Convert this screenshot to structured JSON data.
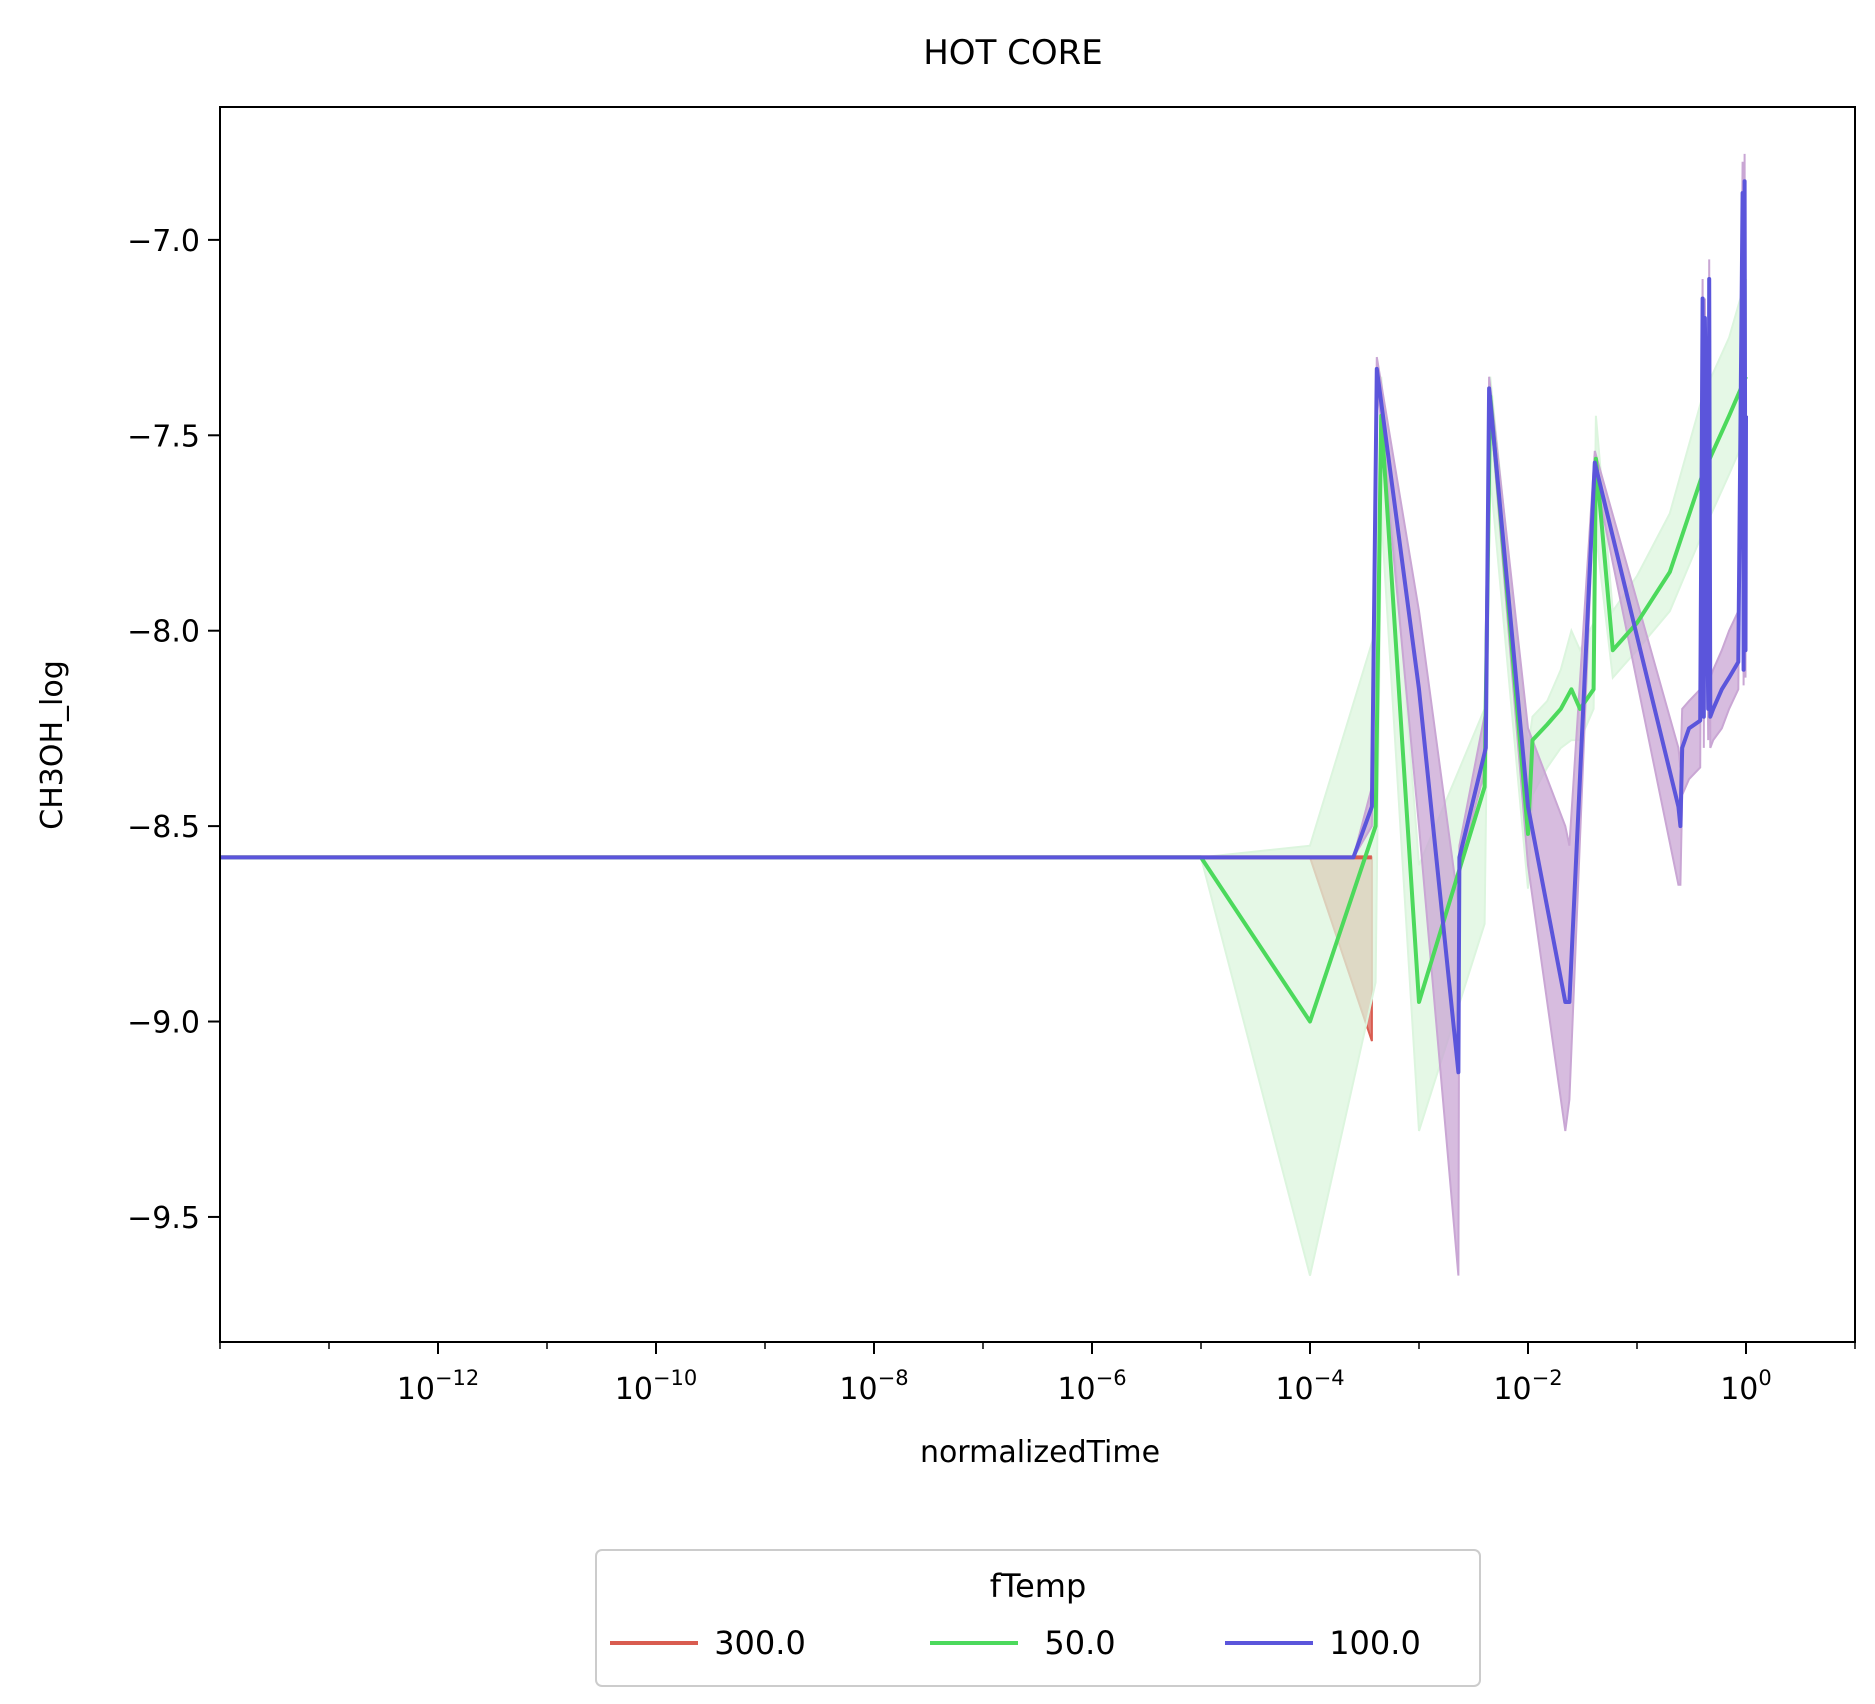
{
  "chart_data": {
    "type": "line",
    "title": "HOT CORE",
    "xlabel": "normalizedTime",
    "ylabel": "CH3OH_log",
    "xscale": "log",
    "xlim": [
      1e-14,
      10
    ],
    "ylim": [
      -9.82,
      -6.66
    ],
    "grid": false,
    "xticks": [
      {
        "value": 1e-12,
        "base": "10",
        "exp": "−12"
      },
      {
        "value": 1e-10,
        "base": "10",
        "exp": "−10"
      },
      {
        "value": 1e-08,
        "base": "10",
        "exp": "−8"
      },
      {
        "value": 1e-06,
        "base": "10",
        "exp": "−6"
      },
      {
        "value": 0.0001,
        "base": "10",
        "exp": "−4"
      },
      {
        "value": 0.01,
        "base": "10",
        "exp": "−2"
      },
      {
        "value": 1,
        "base": "10",
        "exp": "0"
      }
    ],
    "yticks": [
      {
        "value": -7.0,
        "label": "−7.0"
      },
      {
        "value": -7.5,
        "label": "−7.5"
      },
      {
        "value": -8.0,
        "label": "−8.0"
      },
      {
        "value": -8.5,
        "label": "−8.5"
      },
      {
        "value": -9.0,
        "label": "−9.0"
      },
      {
        "value": -9.5,
        "label": "−9.5"
      }
    ],
    "legend": {
      "title": "fTemp",
      "placement": "below-center"
    },
    "series": [
      {
        "name": "300.0",
        "color": "#d95c50",
        "x": [
          1e-14,
          1e-06,
          0.0001,
          0.00037
        ],
        "y": [
          -8.58,
          -8.58,
          -8.58,
          -8.58
        ],
        "band_lower": [
          -8.58,
          -8.58,
          -8.58,
          -9.05
        ],
        "band_upper": [
          -8.58,
          -8.58,
          -8.58,
          -8.58
        ]
      },
      {
        "name": "50.0",
        "color": "#4cd95c",
        "fill": "#dcf5de",
        "x": [
          1e-14,
          1e-05,
          0.0001,
          0.0004,
          0.00045,
          0.001,
          0.004,
          0.0045,
          0.01,
          0.011,
          0.015,
          0.02,
          0.025,
          0.03,
          0.04,
          0.042,
          0.06,
          0.1,
          0.2,
          0.4,
          0.7,
          1.0
        ],
        "y": [
          -8.58,
          -8.58,
          -9.0,
          -8.5,
          -7.45,
          -8.95,
          -8.4,
          -7.4,
          -8.52,
          -8.28,
          -8.24,
          -8.2,
          -8.15,
          -8.2,
          -8.15,
          -7.56,
          -8.05,
          -7.98,
          -7.85,
          -7.6,
          -7.45,
          -7.35
        ],
        "band_lower": [
          -8.58,
          -8.58,
          -9.65,
          -8.9,
          -7.7,
          -9.28,
          -8.75,
          -7.6,
          -8.66,
          -8.42,
          -8.35,
          -8.3,
          -8.28,
          -8.28,
          -8.2,
          -7.75,
          -8.12,
          -8.05,
          -7.95,
          -7.75,
          -7.6,
          -7.5
        ],
        "band_upper": [
          -8.58,
          -8.58,
          -8.55,
          -8.0,
          -7.35,
          -8.6,
          -8.2,
          -7.35,
          -8.3,
          -8.22,
          -8.18,
          -8.1,
          -8.0,
          -8.05,
          -7.98,
          -7.45,
          -7.95,
          -7.86,
          -7.7,
          -7.4,
          -7.25,
          -7.1
        ]
      },
      {
        "name": "100.0",
        "color": "#5b55db",
        "fill": "#c9a6d4",
        "x": [
          1e-14,
          1e-12,
          1e-10,
          1e-08,
          1e-06,
          0.0001,
          0.00025,
          0.00037,
          0.00041,
          0.001,
          0.0023,
          0.00235,
          0.0041,
          0.0044,
          0.01,
          0.022,
          0.024,
          0.041,
          0.24,
          0.25,
          0.26,
          0.3,
          0.38,
          0.4,
          0.41,
          0.42,
          0.45,
          0.46,
          0.47,
          0.5,
          0.6,
          0.7,
          0.85,
          0.93,
          0.95,
          0.97,
          0.99,
          1.0
        ],
        "y": [
          -8.58,
          -8.58,
          -8.58,
          -8.58,
          -8.58,
          -8.58,
          -8.58,
          -8.45,
          -7.33,
          -8.15,
          -9.13,
          -8.58,
          -8.3,
          -7.38,
          -8.45,
          -8.95,
          -8.95,
          -7.57,
          -8.45,
          -8.5,
          -8.3,
          -8.25,
          -8.23,
          -7.15,
          -8.22,
          -7.2,
          -8.2,
          -7.1,
          -8.22,
          -8.2,
          -8.15,
          -8.12,
          -8.08,
          -6.88,
          -8.1,
          -6.85,
          -8.05,
          -7.45
        ],
        "band_lower": [
          -8.58,
          -8.58,
          -8.58,
          -8.58,
          -8.58,
          -8.58,
          -8.58,
          -8.5,
          -7.35,
          -8.5,
          -9.65,
          -8.6,
          -8.35,
          -7.4,
          -8.6,
          -9.28,
          -9.2,
          -7.6,
          -8.65,
          -8.65,
          -8.42,
          -8.38,
          -8.35,
          -7.22,
          -8.3,
          -7.25,
          -8.28,
          -7.15,
          -8.3,
          -8.28,
          -8.25,
          -8.2,
          -8.15,
          -6.92,
          -8.14,
          -6.9,
          -8.12,
          -7.5
        ],
        "band_upper": [
          -8.58,
          -8.58,
          -8.58,
          -8.58,
          -8.58,
          -8.58,
          -8.58,
          -8.4,
          -7.3,
          -7.95,
          -8.7,
          -8.55,
          -8.2,
          -7.35,
          -8.25,
          -8.5,
          -8.55,
          -7.54,
          -8.3,
          -8.35,
          -8.2,
          -8.18,
          -8.15,
          -7.1,
          -8.12,
          -7.15,
          -8.1,
          -7.05,
          -8.12,
          -8.1,
          -8.05,
          -8.0,
          -7.95,
          -6.8,
          -7.95,
          -6.78,
          -7.92,
          -7.4
        ]
      }
    ]
  }
}
